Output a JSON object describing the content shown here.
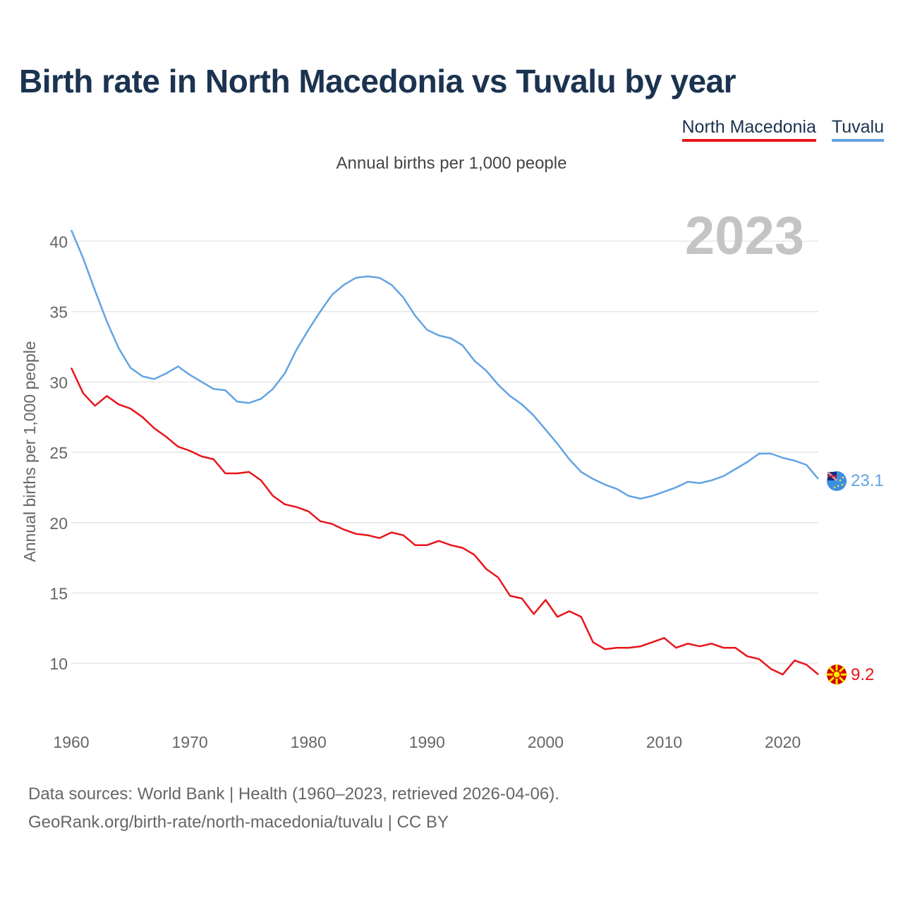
{
  "title": "Birth rate in North Macedonia vs Tuvalu by year",
  "subtitle": "Annual births per 1,000 people",
  "source_line1": "Data sources: World Bank | Health (1960–2023, retrieved 2026-04-06).",
  "source_line2": "GeoRank.org/birth-rate/north-macedonia/tuvalu | CC BY",
  "colors": {
    "north_macedonia": "#e8141b",
    "tuvalu": "#63a3e3",
    "grid": "#e6e6e6",
    "year_watermark": "#c4c4c4",
    "axis_text": "#666666"
  },
  "chart_data": {
    "type": "line",
    "title": "Birth rate in North Macedonia vs Tuvalu by year",
    "xlabel": "",
    "ylabel": "Annual births per 1,000 people",
    "year_label": "2023",
    "xlim": [
      1960,
      2023
    ],
    "ylim": [
      7,
      41.5
    ],
    "x_ticks": [
      1960,
      1970,
      1980,
      1990,
      2000,
      2010,
      2020
    ],
    "y_ticks": [
      10,
      15,
      20,
      25,
      30,
      35,
      40
    ],
    "grid": true,
    "legend": "top-right",
    "x": [
      1960,
      1961,
      1962,
      1963,
      1964,
      1965,
      1966,
      1967,
      1968,
      1969,
      1970,
      1971,
      1972,
      1973,
      1974,
      1975,
      1976,
      1977,
      1978,
      1979,
      1980,
      1981,
      1982,
      1983,
      1984,
      1985,
      1986,
      1987,
      1988,
      1989,
      1990,
      1991,
      1992,
      1993,
      1994,
      1995,
      1996,
      1997,
      1998,
      1999,
      2000,
      2001,
      2002,
      2003,
      2004,
      2005,
      2006,
      2007,
      2008,
      2009,
      2010,
      2011,
      2012,
      2013,
      2014,
      2015,
      2016,
      2017,
      2018,
      2019,
      2020,
      2021,
      2022,
      2023
    ],
    "series": [
      {
        "name": "North Macedonia",
        "color": "#e8141b",
        "end_label": "9.2",
        "flag_icon": "north-macedonia-flag-icon",
        "values": [
          31.0,
          29.2,
          28.3,
          29.0,
          28.4,
          28.1,
          27.5,
          26.7,
          26.1,
          25.4,
          25.1,
          24.7,
          24.5,
          23.5,
          23.5,
          23.6,
          23.0,
          21.9,
          21.3,
          21.1,
          20.8,
          20.1,
          19.9,
          19.5,
          19.2,
          19.1,
          18.9,
          19.3,
          19.1,
          18.4,
          18.4,
          18.7,
          18.4,
          18.2,
          17.7,
          16.7,
          16.1,
          14.8,
          14.6,
          13.5,
          14.5,
          13.3,
          13.7,
          13.3,
          11.5,
          11.0,
          11.1,
          11.1,
          11.2,
          11.5,
          11.8,
          11.1,
          11.4,
          11.2,
          11.4,
          11.1,
          11.1,
          10.5,
          10.3,
          9.6,
          9.2,
          10.2,
          9.9,
          9.2
        ]
      },
      {
        "name": "Tuvalu",
        "color": "#63a3e3",
        "end_label": "23.1",
        "flag_icon": "tuvalu-flag-icon",
        "values": [
          40.8,
          38.8,
          36.5,
          34.3,
          32.4,
          31.0,
          30.4,
          30.2,
          30.6,
          31.1,
          30.5,
          30.0,
          29.5,
          29.4,
          28.6,
          28.5,
          28.8,
          29.5,
          30.6,
          32.3,
          33.7,
          35.0,
          36.2,
          36.9,
          37.4,
          37.5,
          37.4,
          36.9,
          36.0,
          34.7,
          33.7,
          33.3,
          33.1,
          32.6,
          31.5,
          30.8,
          29.8,
          29.0,
          28.4,
          27.6,
          26.6,
          25.6,
          24.5,
          23.6,
          23.1,
          22.7,
          22.4,
          21.9,
          21.7,
          21.9,
          22.2,
          22.5,
          22.9,
          22.8,
          23.0,
          23.3,
          23.8,
          24.3,
          24.9,
          24.9,
          24.6,
          24.4,
          24.1,
          23.1
        ]
      }
    ]
  }
}
